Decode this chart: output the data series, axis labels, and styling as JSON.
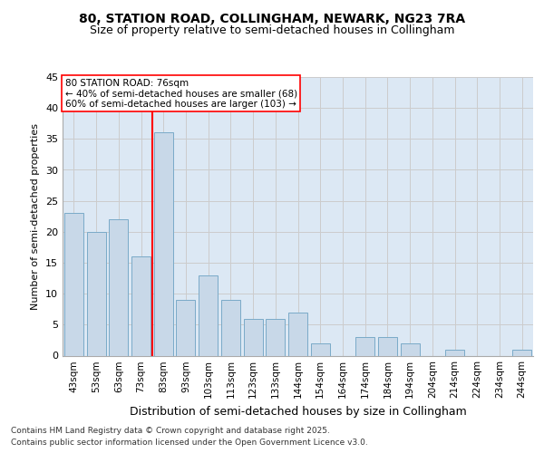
{
  "title1": "80, STATION ROAD, COLLINGHAM, NEWARK, NG23 7RA",
  "title2": "Size of property relative to semi-detached houses in Collingham",
  "xlabel": "Distribution of semi-detached houses by size in Collingham",
  "ylabel": "Number of semi-detached properties",
  "categories": [
    "43sqm",
    "53sqm",
    "63sqm",
    "73sqm",
    "83sqm",
    "93sqm",
    "103sqm",
    "113sqm",
    "123sqm",
    "133sqm",
    "144sqm",
    "154sqm",
    "164sqm",
    "174sqm",
    "184sqm",
    "194sqm",
    "204sqm",
    "214sqm",
    "224sqm",
    "234sqm",
    "244sqm"
  ],
  "values": [
    23,
    20,
    22,
    16,
    36,
    9,
    13,
    9,
    6,
    6,
    7,
    2,
    0,
    3,
    3,
    2,
    0,
    1,
    0,
    0,
    1
  ],
  "bar_color": "#c8d8e8",
  "bar_edge_color": "#7aaac8",
  "grid_color": "#cccccc",
  "background_color": "#dce8f4",
  "vline_x": 3.5,
  "vline_color": "red",
  "annotation_title": "80 STATION ROAD: 76sqm",
  "annotation_line1": "← 40% of semi-detached houses are smaller (68)",
  "annotation_line2": "60% of semi-detached houses are larger (103) →",
  "annotation_box_color": "white",
  "annotation_box_edge_color": "red",
  "footer1": "Contains HM Land Registry data © Crown copyright and database right 2025.",
  "footer2": "Contains public sector information licensed under the Open Government Licence v3.0.",
  "ylim": [
    0,
    45
  ],
  "yticks": [
    0,
    5,
    10,
    15,
    20,
    25,
    30,
    35,
    40,
    45
  ],
  "title1_fontsize": 10,
  "title2_fontsize": 9,
  "ylabel_fontsize": 8,
  "xlabel_fontsize": 9,
  "tick_fontsize": 8,
  "xtick_fontsize": 7.5,
  "footer_fontsize": 6.5,
  "annotation_fontsize": 7.5
}
